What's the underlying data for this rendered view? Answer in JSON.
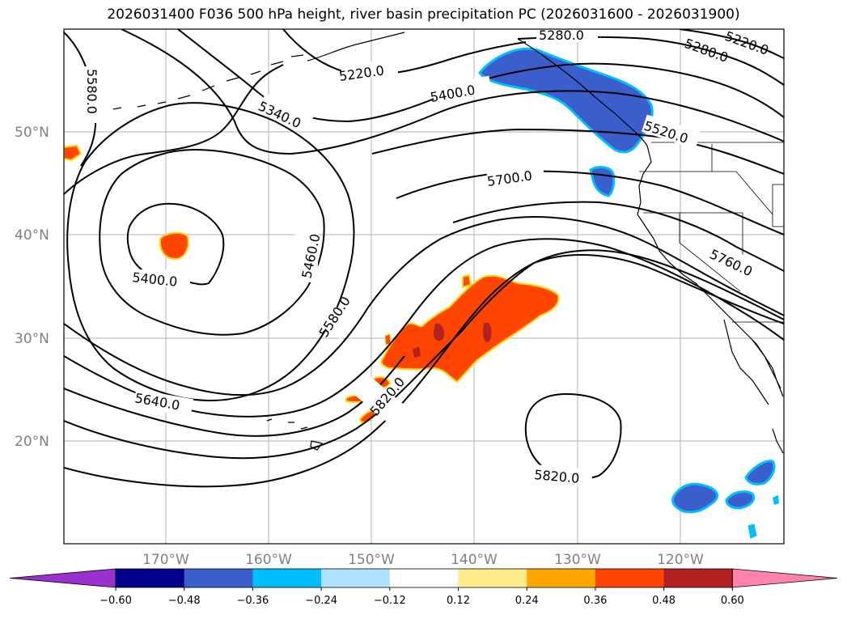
{
  "title": "2026031400 F036 500 hPa height, river basin precipitation PC (2026031600 - 2026031900)",
  "lat_labels": [
    "50°N",
    "40°N",
    "30°N",
    "20°N"
  ],
  "lon_labels": [
    "170°W",
    "160°W",
    "150°W",
    "140°W",
    "130°W",
    "120°W"
  ],
  "contour_labels": [
    "5580.0",
    "5280.0",
    "5220.0",
    "5280.0",
    "5220.0",
    "5400.0",
    "5340.0",
    "5520.0",
    "5700.0",
    "5460.0",
    "5400.0",
    "5760.0",
    "5580.0",
    "5820.0",
    "5640.0",
    "5820.0"
  ],
  "colorbar": {
    "ticks": [
      "−0.60",
      "−0.48",
      "−0.36",
      "−0.24",
      "−0.12",
      "0.12",
      "0.24",
      "0.36",
      "0.48",
      "0.60"
    ],
    "colors": [
      "#9b30d0",
      "#00008b",
      "#3a5fcd",
      "#00bfff",
      "#b0e2ff",
      "#ffffff",
      "#ffec8b",
      "#ffa500",
      "#ff4500",
      "#b22222",
      "#ff82ab",
      "#ff82ab"
    ]
  },
  "colors": {
    "neg_fill": "#3a5fcd",
    "neg_edge": "#00bfff",
    "pos_fill": "#ff4500",
    "pos_dark": "#b22222",
    "pos_edge": "#ffd700",
    "gridline": "#b0b0b0"
  }
}
